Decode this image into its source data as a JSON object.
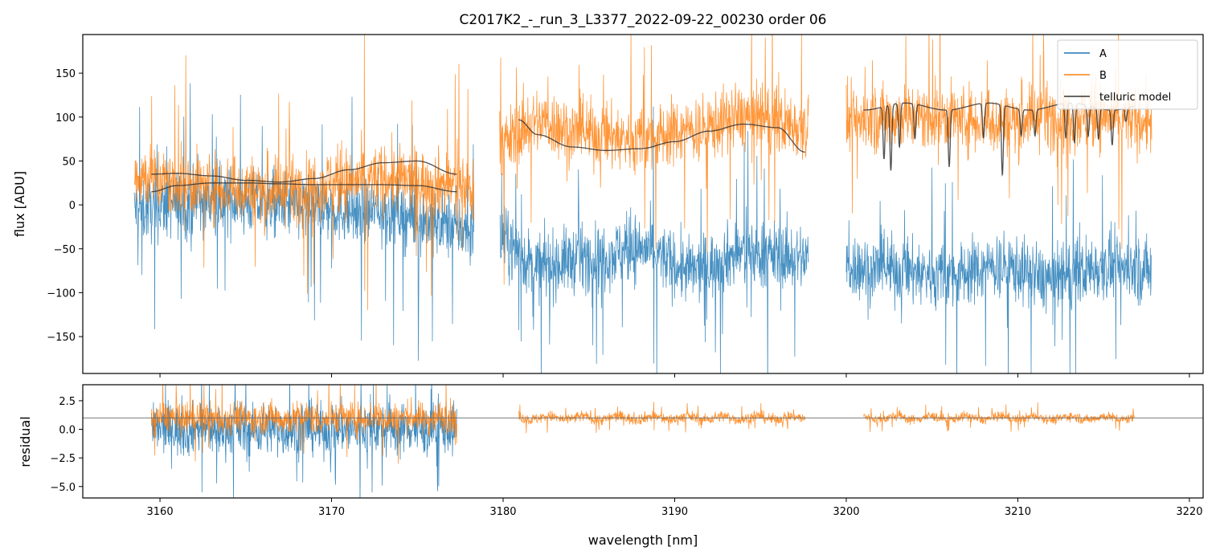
{
  "chart_data": [
    {
      "type": "line",
      "title": "C2017K2_-_run_3_L3377_2022-09-22_00230  order 06",
      "xlabel": "",
      "ylabel": "flux [ADU]",
      "xlim": [
        3155.5,
        3220.8
      ],
      "ylim": [
        -192,
        194
      ],
      "xticks": [
        3160,
        3170,
        3180,
        3190,
        3200,
        3210,
        3220
      ],
      "yticks": [
        -150,
        -100,
        -50,
        0,
        50,
        100,
        150
      ],
      "ytick_labels": [
        "−150",
        "−100",
        "−50",
        "0",
        "50",
        "100",
        "150"
      ],
      "legend": {
        "position": "top-right",
        "entries": [
          "A",
          "B",
          "telluric model"
        ]
      },
      "series": [
        {
          "name": "A",
          "color": "#1f77b4",
          "style": "noisy-spectrum",
          "segments": [
            {
              "x_range": [
                3158.5,
                3178.3
              ],
              "knots_x": [
                3158.5,
                3161,
                3164,
                3167,
                3170,
                3173,
                3176,
                3178.3
              ],
              "knots_y": [
                -5,
                0,
                5,
                0,
                -5,
                -8,
                -20,
                -30
              ]
            },
            {
              "x_range": [
                3179.8,
                3197.8
              ],
              "knots_x": [
                3179.8,
                3182,
                3185,
                3188,
                3191,
                3194,
                3197.8
              ],
              "knots_y": [
                -40,
                -70,
                -60,
                -50,
                -75,
                -55,
                -60
              ]
            },
            {
              "x_range": [
                3200.0,
                3217.8
              ],
              "knots_x": [
                3200,
                3203,
                3206,
                3209,
                3212,
                3215,
                3217.8
              ],
              "knots_y": [
                -70,
                -75,
                -80,
                -70,
                -85,
                -70,
                -75
              ]
            }
          ],
          "noise_amplitude": 30
        },
        {
          "name": "B",
          "color": "#ff7f0e",
          "style": "noisy-spectrum",
          "segments": [
            {
              "x_range": [
                3158.5,
                3178.3
              ],
              "knots_x": [
                3158.5,
                3161,
                3164,
                3167,
                3170,
                3173,
                3176,
                3178.3
              ],
              "knots_y": [
                35,
                25,
                20,
                15,
                25,
                30,
                25,
                20
              ]
            },
            {
              "x_range": [
                3179.8,
                3197.8
              ],
              "knots_x": [
                3179.8,
                3182,
                3185,
                3188,
                3191,
                3194,
                3197.8
              ],
              "knots_y": [
                70,
                95,
                80,
                75,
                85,
                100,
                90
              ]
            },
            {
              "x_range": [
                3200.0,
                3217.8
              ],
              "knots_x": [
                3200,
                3203,
                3206,
                3209,
                3212,
                3215,
                3217.8
              ],
              "knots_y": [
                95,
                100,
                100,
                95,
                100,
                100,
                95
              ]
            }
          ],
          "noise_amplitude": 30
        },
        {
          "name": "telluric model",
          "color": "#333333",
          "style": "smooth",
          "segments": [
            {
              "x": [
                3159.5,
                3161,
                3163,
                3165,
                3167,
                3169,
                3171,
                3173,
                3175,
                3177.3
              ],
              "y": [
                35,
                36,
                33,
                28,
                26,
                30,
                40,
                48,
                50,
                35
              ]
            },
            {
              "x": [
                3159.5,
                3161,
                3163,
                3165,
                3167,
                3169,
                3171,
                3173,
                3175,
                3177.3
              ],
              "y": [
                15,
                22,
                25,
                25,
                24,
                23,
                23,
                23,
                22,
                15
              ]
            },
            {
              "x": [
                3180.9,
                3182,
                3184,
                3186,
                3188,
                3190,
                3192,
                3194,
                3196,
                3197.6
              ],
              "y": [
                97,
                80,
                66,
                62,
                64,
                72,
                84,
                92,
                88,
                60
              ]
            },
            {
              "x_range": [
                3201.0,
                3216.8
              ],
              "baseline": 112,
              "absorption_lines": [
                {
                  "x": 3202.2,
                  "depth": 60
                },
                {
                  "x": 3202.6,
                  "depth": 75
                },
                {
                  "x": 3203.1,
                  "depth": 50
                },
                {
                  "x": 3204.0,
                  "depth": 40
                },
                {
                  "x": 3206.0,
                  "depth": 65
                },
                {
                  "x": 3208.0,
                  "depth": 40
                },
                {
                  "x": 3209.1,
                  "depth": 80
                },
                {
                  "x": 3210.2,
                  "depth": 30
                },
                {
                  "x": 3211.0,
                  "depth": 30
                },
                {
                  "x": 3212.8,
                  "depth": 40
                },
                {
                  "x": 3213.3,
                  "depth": 45
                },
                {
                  "x": 3214.1,
                  "depth": 35
                },
                {
                  "x": 3214.7,
                  "depth": 35
                },
                {
                  "x": 3215.5,
                  "depth": 40
                },
                {
                  "x": 3216.3,
                  "depth": 15
                }
              ]
            }
          ]
        }
      ]
    },
    {
      "type": "line",
      "title": "",
      "xlabel": "wavelength [nm]",
      "ylabel": "residual",
      "xlim": [
        3155.5,
        3220.8
      ],
      "ylim": [
        -6.0,
        3.9
      ],
      "xticks": [
        3160,
        3170,
        3180,
        3190,
        3200,
        3210,
        3220
      ],
      "xtick_labels": [
        "3160",
        "3170",
        "3180",
        "3190",
        "3200",
        "3210",
        "3220"
      ],
      "yticks": [
        -5.0,
        -2.5,
        0.0,
        2.5
      ],
      "ytick_labels": [
        "−5.0",
        "−2.5",
        "0.0",
        "2.5"
      ],
      "reference_line": 1.0,
      "series": [
        {
          "name": "A",
          "color": "#1f77b4",
          "style": "noisy-residual",
          "segments": [
            {
              "x_range": [
                3159.5,
                3177.3
              ],
              "center": 0.0,
              "noise": 1.6
            }
          ]
        },
        {
          "name": "B",
          "color": "#ff7f0e",
          "style": "noisy-residual",
          "segments": [
            {
              "x_range": [
                3159.5,
                3177.3
              ],
              "center": 1.0,
              "noise": 1.0
            },
            {
              "x_range": [
                3180.9,
                3197.6
              ],
              "center": 1.0,
              "noise": 0.35
            },
            {
              "x_range": [
                3201.0,
                3216.8
              ],
              "center": 1.0,
              "noise": 0.3
            }
          ]
        }
      ]
    }
  ]
}
